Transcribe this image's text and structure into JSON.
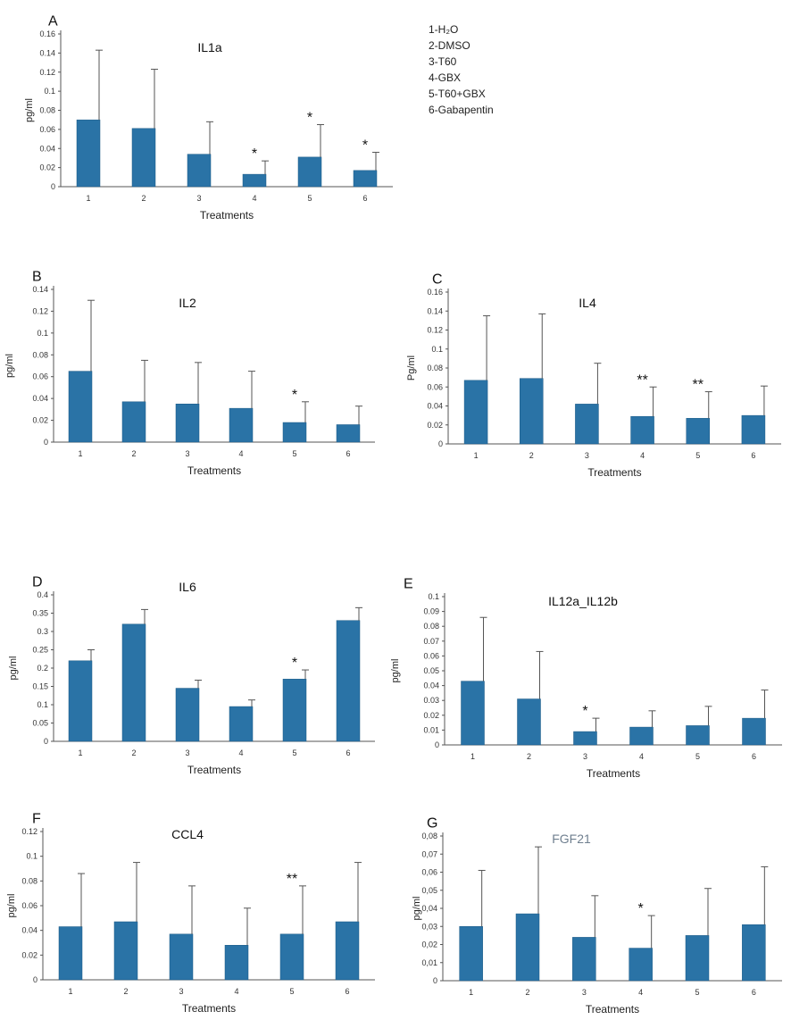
{
  "legend": {
    "items": [
      "1-H₂O",
      "2-DMSO",
      "3-T60",
      "4-GBX",
      "5-T60+GBX",
      "6-Gabapentin"
    ]
  },
  "colors": {
    "bar": "#2a73a6",
    "bar_edge": "#1c5a86",
    "axis": "#555555",
    "error": "#555555",
    "fgf_title": "#6f7f8f"
  },
  "chart_data": [
    {
      "panel": "A",
      "type": "bar",
      "title": "IL1a",
      "xlabel": "Treatments",
      "ylabel": "pg/ml",
      "categories": [
        "1",
        "2",
        "3",
        "4",
        "5",
        "6"
      ],
      "values": [
        0.07,
        0.061,
        0.034,
        0.013,
        0.031,
        0.017
      ],
      "errors": [
        0.073,
        0.062,
        0.034,
        0.014,
        0.034,
        0.019
      ],
      "significance": [
        "",
        "",
        "",
        "*",
        "*",
        "*"
      ],
      "ylim": [
        0,
        0.16
      ],
      "yticks": [
        "0",
        "0.02",
        "0.04",
        "0.06",
        "0.08",
        "0.1",
        "0.12",
        "0.14",
        "0.16"
      ]
    },
    {
      "panel": "B",
      "type": "bar",
      "title": "IL2",
      "xlabel": "Treatments",
      "ylabel": "pg/ml",
      "categories": [
        "1",
        "2",
        "3",
        "4",
        "5",
        "6"
      ],
      "values": [
        0.065,
        0.037,
        0.035,
        0.031,
        0.018,
        0.016
      ],
      "errors": [
        0.065,
        0.038,
        0.038,
        0.034,
        0.019,
        0.017
      ],
      "significance": [
        "",
        "",
        "",
        "",
        "*",
        ""
      ],
      "ylim": [
        0,
        0.14
      ],
      "yticks": [
        "0",
        "0.02",
        "0.04",
        "0.06",
        "0.08",
        "0.1",
        "0.12",
        "0.14"
      ]
    },
    {
      "panel": "C",
      "type": "bar",
      "title": "IL4",
      "xlabel": "Treatments",
      "ylabel": "Pg/ml",
      "categories": [
        "1",
        "2",
        "3",
        "4",
        "5",
        "6"
      ],
      "values": [
        0.067,
        0.069,
        0.042,
        0.029,
        0.027,
        0.03
      ],
      "errors": [
        0.068,
        0.068,
        0.043,
        0.031,
        0.028,
        0.031
      ],
      "significance": [
        "",
        "",
        "",
        "**",
        "**",
        ""
      ],
      "ylim": [
        0,
        0.16
      ],
      "yticks": [
        "0",
        "0.02",
        "0.04",
        "0.06",
        "0.08",
        "0.1",
        "0.12",
        "0.14",
        "0.16"
      ]
    },
    {
      "panel": "D",
      "type": "bar",
      "title": "IL6",
      "xlabel": "Treatments",
      "ylabel": "pg/ml",
      "categories": [
        "1",
        "2",
        "3",
        "4",
        "5",
        "6"
      ],
      "values": [
        0.22,
        0.32,
        0.145,
        0.095,
        0.17,
        0.33
      ],
      "errors": [
        0.03,
        0.04,
        0.022,
        0.018,
        0.025,
        0.035
      ],
      "significance": [
        "",
        "",
        "",
        "",
        "*",
        ""
      ],
      "ylim": [
        0,
        0.4
      ],
      "yticks": [
        "0",
        "0.05",
        "0.1",
        "0.15",
        "0.2",
        "0.25",
        "0.3",
        "0.35",
        "0.4"
      ]
    },
    {
      "panel": "E",
      "type": "bar",
      "title": "IL12a_IL12b",
      "xlabel": "Treatments",
      "ylabel": "pg/ml",
      "categories": [
        "1",
        "2",
        "3",
        "4",
        "5",
        "6"
      ],
      "values": [
        0.043,
        0.031,
        0.009,
        0.012,
        0.013,
        0.018
      ],
      "errors": [
        0.043,
        0.032,
        0.009,
        0.011,
        0.013,
        0.019
      ],
      "significance": [
        "",
        "",
        "*",
        "",
        "",
        ""
      ],
      "ylim": [
        0,
        0.1
      ],
      "yticks": [
        "0",
        "0.01",
        "0.02",
        "0.03",
        "0.04",
        "0.05",
        "0.06",
        "0.07",
        "0.08",
        "0.09",
        "0.1"
      ]
    },
    {
      "panel": "F",
      "type": "bar",
      "title": "CCL4",
      "xlabel": "Treatments",
      "ylabel": "pg/ml",
      "categories": [
        "1",
        "2",
        "3",
        "4",
        "5",
        "6"
      ],
      "values": [
        0.043,
        0.047,
        0.037,
        0.028,
        0.037,
        0.047
      ],
      "errors": [
        0.043,
        0.048,
        0.039,
        0.03,
        0.039,
        0.048
      ],
      "significance": [
        "",
        "",
        "",
        "",
        "**",
        ""
      ],
      "ylim": [
        0,
        0.12
      ],
      "yticks": [
        "0",
        "0.02",
        "0.04",
        "0.06",
        "0.08",
        "0.1",
        "0.12"
      ]
    },
    {
      "panel": "G",
      "type": "bar",
      "title": "FGF21",
      "xlabel": "Treatments",
      "ylabel": "pg/ml",
      "categories": [
        "1",
        "2",
        "3",
        "4",
        "5",
        "6"
      ],
      "values": [
        0.03,
        0.037,
        0.024,
        0.018,
        0.025,
        0.031
      ],
      "errors": [
        0.031,
        0.037,
        0.023,
        0.018,
        0.026,
        0.032
      ],
      "significance": [
        "",
        "",
        "",
        "*",
        "",
        ""
      ],
      "ylim": [
        0,
        0.08
      ],
      "yticks": [
        "0",
        "0,01",
        "0,02",
        "0,03",
        "0,04",
        "0,05",
        "0,06",
        "0,07",
        "0,08"
      ]
    }
  ]
}
